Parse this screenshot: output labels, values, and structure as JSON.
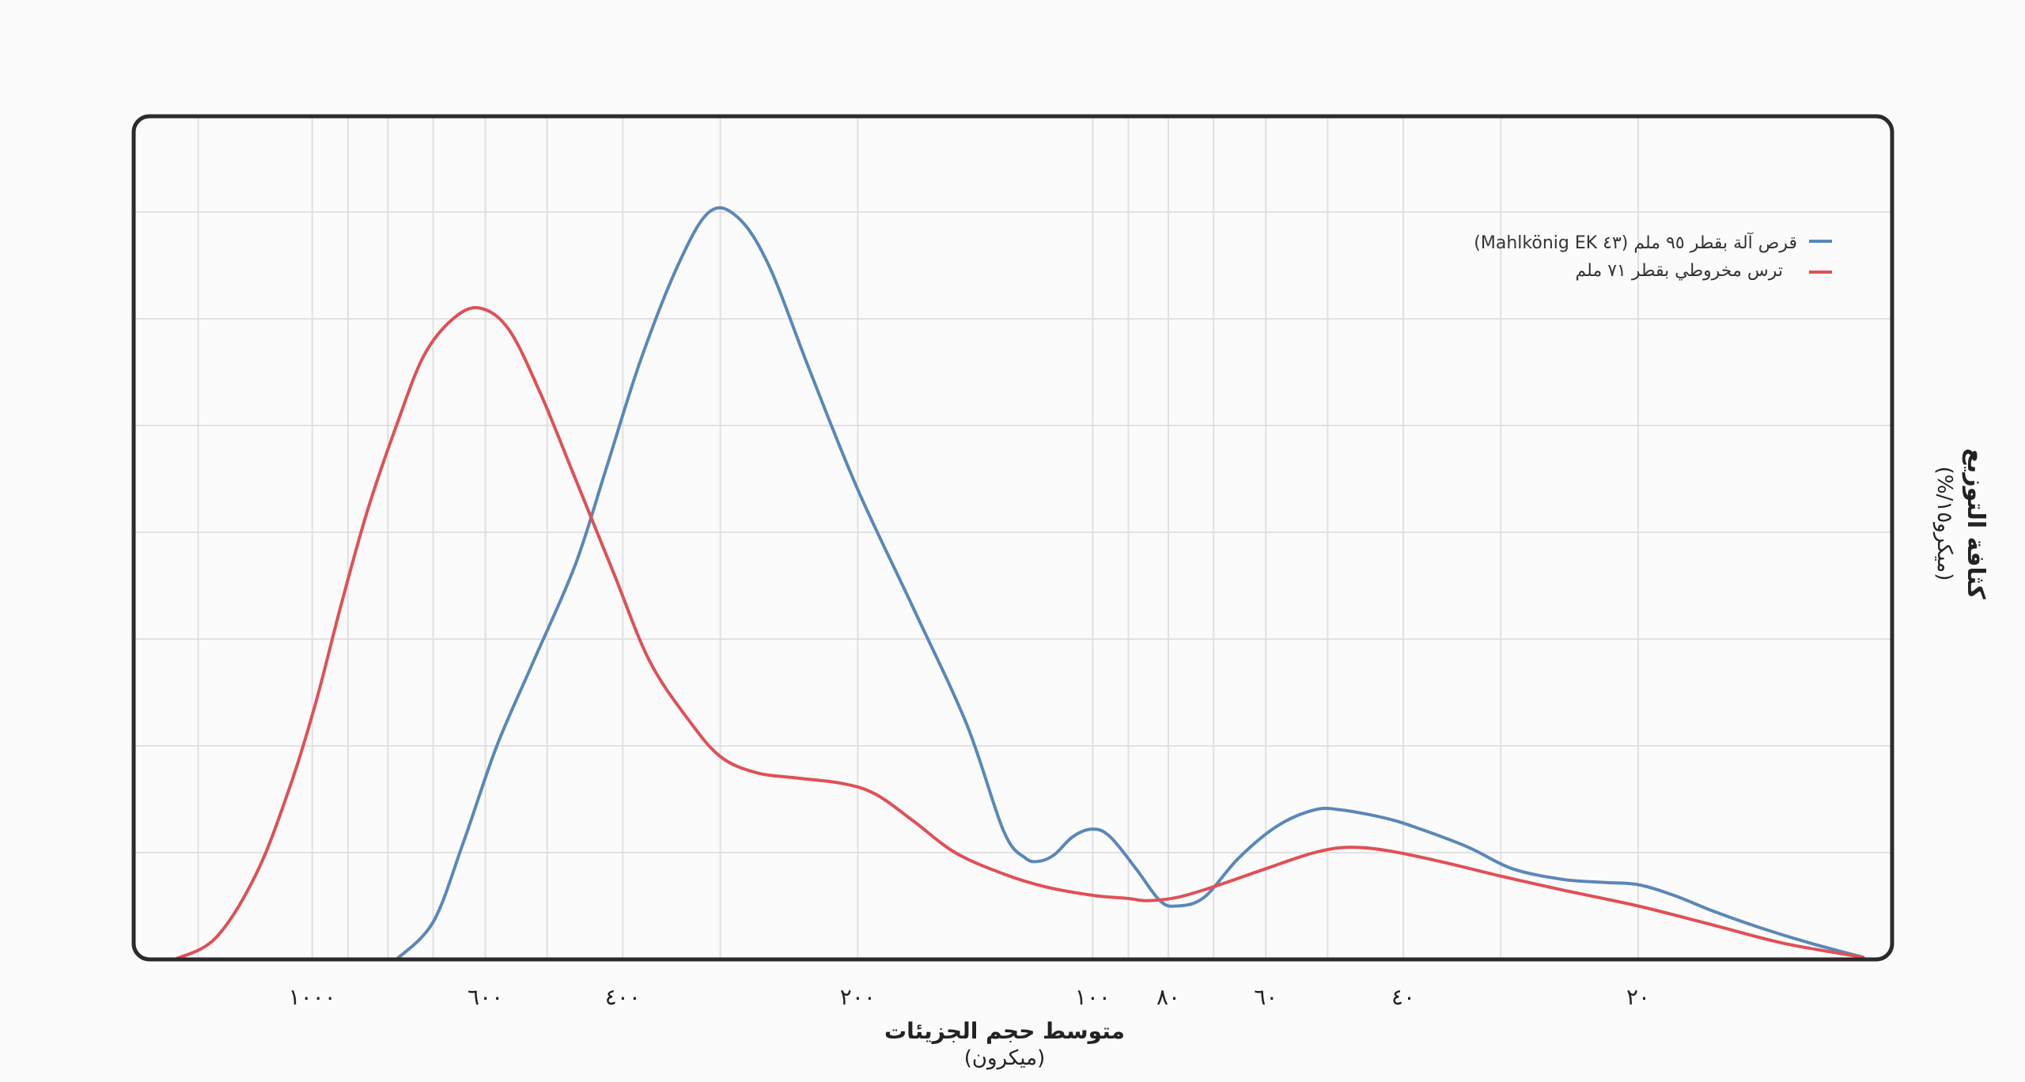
{
  "chart_data": {
    "type": "line",
    "title": "",
    "xlabel": "متوسط حجم الجزيئات",
    "xlabel_unit": "(ميكرون)",
    "ylabel": "كثافة التوزيع",
    "ylabel_unit": "(%/ميكرو١٥)",
    "x_scale": "log",
    "x_direction": "reversed",
    "xlim": [
      10,
      1500
    ],
    "ylim": [
      0,
      7
    ],
    "grid": true,
    "legend_position": "top-right",
    "x_ticks": [
      {
        "value": 1000,
        "label": "١٠٠٠"
      },
      {
        "value": 600,
        "label": "٦٠٠"
      },
      {
        "value": 400,
        "label": "٤٠٠"
      },
      {
        "value": 200,
        "label": "٢٠٠"
      },
      {
        "value": 100,
        "label": "١٠٠"
      },
      {
        "value": 80,
        "label": "٨٠"
      },
      {
        "value": 60,
        "label": "٦٠"
      },
      {
        "value": 40,
        "label": "٤٠"
      },
      {
        "value": 20,
        "label": "٢٠"
      }
    ],
    "minor_gridlines_x": [
      1400,
      900,
      800,
      700,
      500,
      300,
      90,
      70,
      50,
      30
    ],
    "series": [
      {
        "name": "(Mahlkönig EK ٤٣) قرص آلة بقطر ٩٥ ملم",
        "color": "#5b87b8",
        "points": [
          [
            780,
            0
          ],
          [
            700,
            0.35
          ],
          [
            640,
            1.1
          ],
          [
            580,
            2.0
          ],
          [
            520,
            2.8
          ],
          [
            460,
            3.7
          ],
          [
            420,
            4.6
          ],
          [
            380,
            5.6
          ],
          [
            340,
            6.5
          ],
          [
            310,
            7.0
          ],
          [
            285,
            6.95
          ],
          [
            260,
            6.5
          ],
          [
            230,
            5.5
          ],
          [
            200,
            4.4
          ],
          [
            170,
            3.3
          ],
          [
            145,
            2.2
          ],
          [
            130,
            1.2
          ],
          [
            122,
            0.95
          ],
          [
            117,
            0.92
          ],
          [
            112,
            0.98
          ],
          [
            106,
            1.15
          ],
          [
            100,
            1.22
          ],
          [
            95,
            1.15
          ],
          [
            88,
            0.85
          ],
          [
            82,
            0.55
          ],
          [
            78,
            0.5
          ],
          [
            72,
            0.58
          ],
          [
            65,
            0.95
          ],
          [
            58,
            1.25
          ],
          [
            52,
            1.4
          ],
          [
            48,
            1.4
          ],
          [
            42,
            1.32
          ],
          [
            38,
            1.22
          ],
          [
            33,
            1.05
          ],
          [
            29,
            0.85
          ],
          [
            25,
            0.75
          ],
          [
            22,
            0.72
          ],
          [
            20,
            0.7
          ],
          [
            18,
            0.6
          ],
          [
            16,
            0.45
          ],
          [
            14,
            0.3
          ],
          [
            12,
            0.15
          ],
          [
            10.3,
            0.02
          ]
        ]
      },
      {
        "name": "ترس مخروطي بقطر ٧١ ملم",
        "color": "#e05057",
        "points": [
          [
            1500,
            0
          ],
          [
            1330,
            0.2
          ],
          [
            1180,
            0.8
          ],
          [
            1070,
            1.6
          ],
          [
            990,
            2.4
          ],
          [
            920,
            3.3
          ],
          [
            850,
            4.2
          ],
          [
            780,
            5.0
          ],
          [
            720,
            5.65
          ],
          [
            660,
            6.0
          ],
          [
            610,
            6.1
          ],
          [
            560,
            5.9
          ],
          [
            510,
            5.3
          ],
          [
            460,
            4.5
          ],
          [
            410,
            3.6
          ],
          [
            370,
            2.8
          ],
          [
            330,
            2.25
          ],
          [
            300,
            1.9
          ],
          [
            270,
            1.75
          ],
          [
            240,
            1.7
          ],
          [
            210,
            1.65
          ],
          [
            190,
            1.55
          ],
          [
            170,
            1.3
          ],
          [
            150,
            1.0
          ],
          [
            130,
            0.8
          ],
          [
            115,
            0.68
          ],
          [
            100,
            0.6
          ],
          [
            90,
            0.57
          ],
          [
            85,
            0.55
          ],
          [
            78,
            0.58
          ],
          [
            70,
            0.68
          ],
          [
            60,
            0.85
          ],
          [
            52,
            1.0
          ],
          [
            47,
            1.05
          ],
          [
            42,
            1.02
          ],
          [
            36,
            0.92
          ],
          [
            30,
            0.78
          ],
          [
            25,
            0.65
          ],
          [
            20,
            0.5
          ],
          [
            16,
            0.32
          ],
          [
            13,
            0.15
          ],
          [
            10.3,
            0.02
          ]
        ]
      }
    ]
  }
}
